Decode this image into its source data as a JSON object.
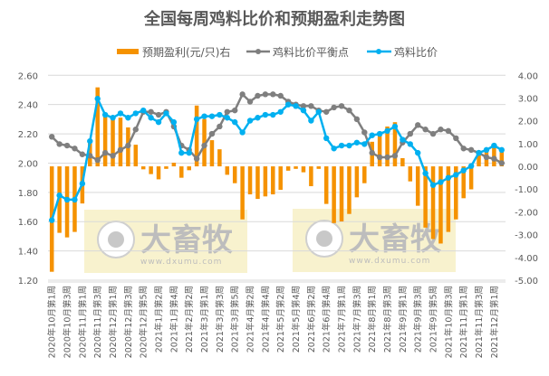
{
  "chart_data": {
    "type": "bar+line",
    "title": "全国每周鸡料比价和预期盈利走势图",
    "colors": {
      "profit": "#F59200",
      "balance": "#7F7F7F",
      "ratio": "#00B0F0",
      "grid": "#D9D9D9"
    },
    "x_tick_labels": [
      "2020年10月第1周",
      "2020年10月第3周",
      "2020年11月第1周",
      "2020年11月第3周",
      "2020年12月第1周",
      "2020年12月第3周",
      "2020年12月第5周",
      "2021年1月第2周",
      "2021年1月第4周",
      "2021年2月第2周",
      "2021年3月第1周",
      "2021年3月第3周",
      "2021年3月第5周",
      "2021年4月第2周",
      "2021年4月第4周",
      "2021年5月第2周",
      "2021年5月第4周",
      "2021年6月第2周",
      "2021年6月第4周",
      "2021年7月第1周",
      "2021年7月第3周",
      "2021年8月第1周",
      "2021年8月第3周",
      "2021年9月第1周",
      "2021年9月第3周",
      "2021年9月第5周",
      "2021年10月第3周",
      "2021年11月第1周",
      "2021年11月第3周",
      "2021年12月第1周"
    ],
    "y_left": {
      "range": [
        1.2,
        2.6
      ],
      "ticks": [
        "2.60",
        "2.40",
        "2.20",
        "2.00",
        "1.80",
        "1.60",
        "1.40",
        "1.20"
      ]
    },
    "y_right": {
      "range": [
        -5.0,
        4.0
      ],
      "ticks": [
        "4.00",
        "3.00",
        "2.00",
        "1.00",
        "0.00",
        "-1.00",
        "-2.00",
        "-3.00",
        "-4.00",
        "-5.00"
      ]
    },
    "grid": true,
    "legend_position": "top",
    "series": [
      {
        "name": "预期盈利(元/只)右",
        "type": "bar",
        "axis": "right",
        "values": [
          -4.63,
          -2.92,
          -3.12,
          -2.88,
          -1.63,
          1.08,
          3.47,
          2.28,
          2.08,
          2.14,
          1.71,
          0.95,
          -0.13,
          -0.34,
          -0.57,
          -0.11,
          0.16,
          -0.5,
          -0.17,
          2.67,
          2.08,
          1.15,
          0.75,
          -0.37,
          -0.74,
          -2.33,
          -1.23,
          -1.43,
          -1.32,
          -1.23,
          -1.03,
          -0.19,
          -0.11,
          -0.26,
          -0.87,
          -0.11,
          -1.65,
          -2.49,
          -2.42,
          -2.09,
          -1.36,
          -0.74,
          1.08,
          1.35,
          1.75,
          1.94,
          0.36,
          -0.66,
          -1.73,
          -2.69,
          -3.19,
          -3.39,
          -2.88,
          -2.33,
          -1.4,
          -1.01,
          0.56,
          0.75,
          0.95,
          0.66
        ]
      },
      {
        "name": "鸡料比价平衡点",
        "type": "line",
        "axis": "left",
        "values": [
          2.18,
          2.13,
          2.12,
          2.1,
          2.06,
          2.05,
          2.02,
          2.07,
          2.05,
          2.09,
          2.12,
          2.23,
          2.35,
          2.35,
          2.33,
          2.35,
          2.25,
          2.12,
          2.09,
          2.03,
          2.12,
          2.2,
          2.25,
          2.35,
          2.36,
          2.47,
          2.42,
          2.46,
          2.47,
          2.47,
          2.46,
          2.42,
          2.4,
          2.39,
          2.39,
          2.36,
          2.35,
          2.38,
          2.39,
          2.36,
          2.3,
          2.21,
          2.07,
          2.04,
          2.04,
          2.05,
          2.14,
          2.2,
          2.26,
          2.23,
          2.2,
          2.23,
          2.22,
          2.17,
          2.1,
          2.09,
          2.07,
          2.04,
          2.03,
          2.0
        ]
      },
      {
        "name": "鸡料比价",
        "type": "line",
        "axis": "left",
        "values": [
          1.61,
          1.78,
          1.75,
          1.75,
          1.86,
          2.15,
          2.44,
          2.33,
          2.31,
          2.34,
          2.31,
          2.34,
          2.36,
          2.31,
          2.28,
          2.34,
          2.28,
          2.07,
          2.07,
          2.3,
          2.32,
          2.32,
          2.33,
          2.31,
          2.28,
          2.21,
          2.29,
          2.31,
          2.33,
          2.33,
          2.35,
          2.4,
          2.39,
          2.36,
          2.29,
          2.35,
          2.17,
          2.1,
          2.12,
          2.12,
          2.14,
          2.13,
          2.19,
          2.2,
          2.22,
          2.25,
          2.16,
          2.13,
          2.07,
          1.93,
          1.85,
          1.87,
          1.9,
          1.92,
          1.95,
          1.98,
          2.07,
          2.09,
          2.12,
          2.09
        ]
      }
    ]
  },
  "watermark": {
    "brand": "大畜牧",
    "url": "www.dxumu.com"
  }
}
